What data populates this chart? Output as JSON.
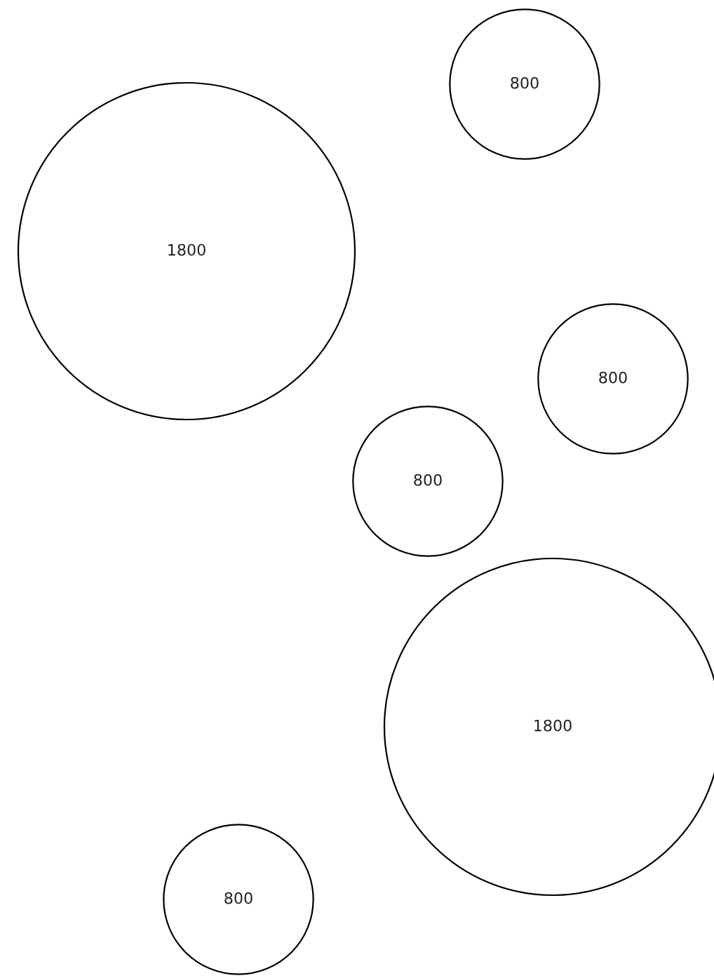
{
  "chart_data": {
    "type": "other",
    "categories": [
      null,
      null,
      null,
      null,
      null,
      null
    ],
    "values": [
      800,
      1800,
      800,
      800,
      1800,
      800
    ],
    "data_labels": true
  }
}
